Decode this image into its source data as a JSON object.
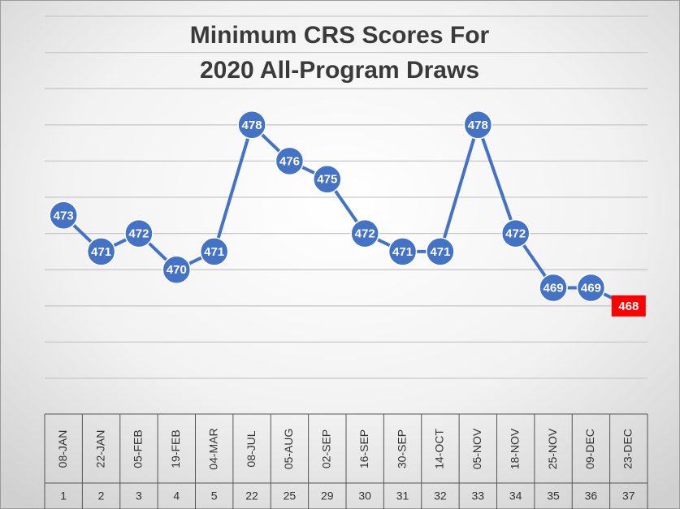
{
  "chart_data": {
    "type": "line",
    "title": [
      "Minimum CRS Scores For",
      "2020 All-Program Draws"
    ],
    "categories": [
      "08-JAN",
      "22-JAN",
      "05-FEB",
      "19-FEB",
      "04-MAR",
      "08-JUL",
      "05-AUG",
      "02-SEP",
      "16-SEP",
      "30-SEP",
      "14-OCT",
      "05-NOV",
      "18-NOV",
      "25-NOV",
      "09-DEC",
      "23-DEC"
    ],
    "draw_numbers": [
      1,
      2,
      3,
      4,
      5,
      22,
      25,
      29,
      30,
      31,
      32,
      33,
      34,
      35,
      36,
      37
    ],
    "series": [
      {
        "name": "Minimum CRS Score",
        "color": "#4472c4",
        "values": [
          473,
          471,
          472,
          470,
          471,
          478,
          476,
          475,
          472,
          471,
          471,
          478,
          472,
          469,
          469,
          468
        ]
      }
    ],
    "highlight_color": "#ff0000",
    "ylim": [
      464,
      484
    ],
    "yticks": [
      464,
      466,
      468,
      470,
      472,
      474,
      476,
      478,
      480,
      482,
      484
    ],
    "grid": true
  }
}
